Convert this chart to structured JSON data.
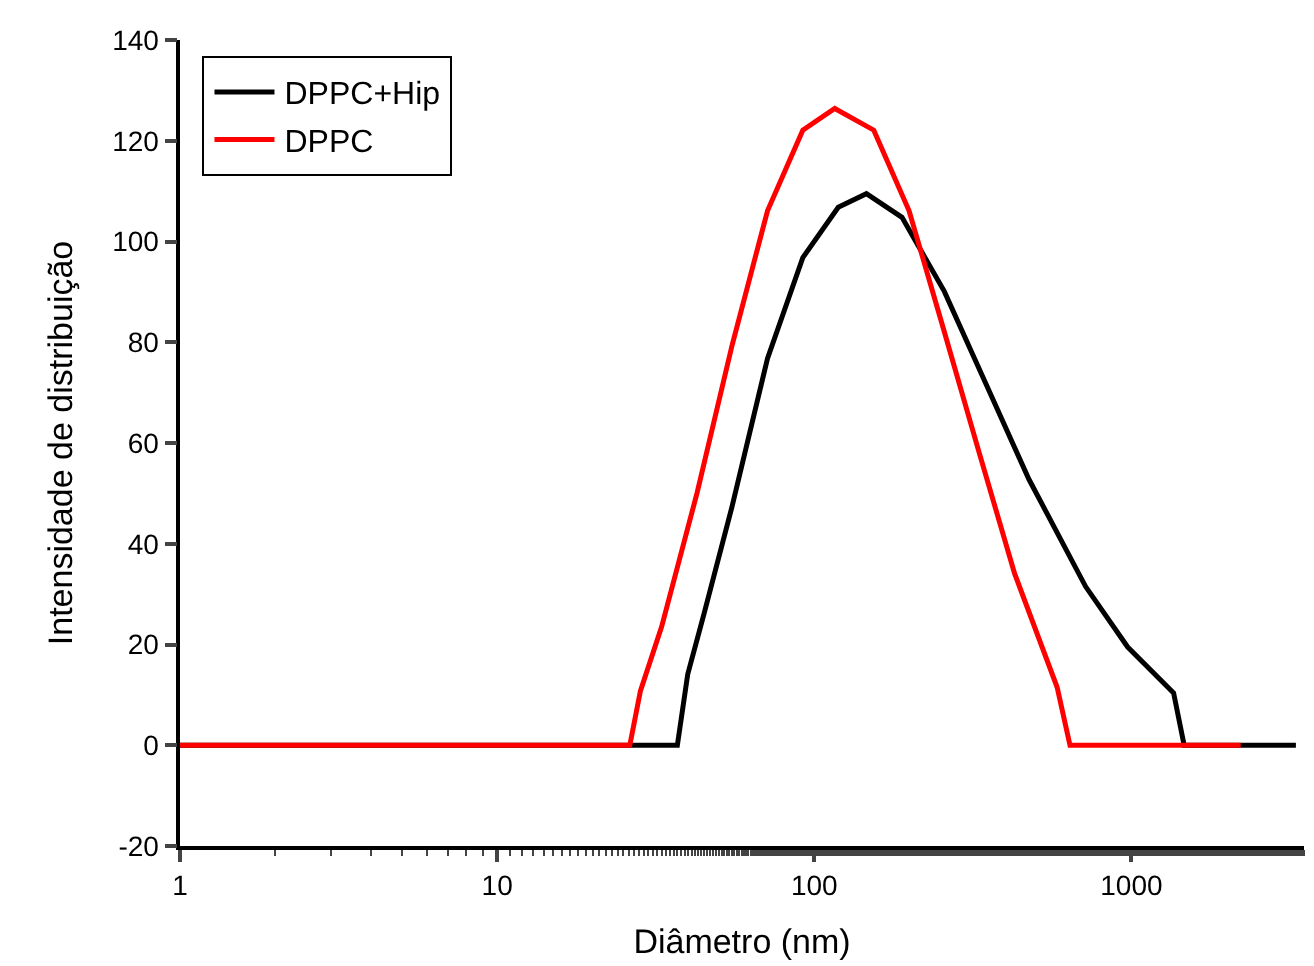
{
  "chart_data": {
    "type": "line",
    "xlabel": "Diâmetro (nm)",
    "ylabel": "Intensidade de distribuição",
    "log": "x",
    "xlim": [
      1,
      3500
    ],
    "xticks": [
      1,
      10,
      100,
      1000
    ],
    "ylim": [
      -20,
      140
    ],
    "yticks": [
      -20,
      0,
      20,
      40,
      60,
      80,
      100,
      120,
      140
    ],
    "grid": false,
    "legend": "top left",
    "marker": "none",
    "line_style": "solid",
    "series": [
      {
        "name": "DPPC+Hip",
        "color": "#000000",
        "x": [
          1,
          37,
          39.9,
          44.9,
          55.1,
          71.2,
          92,
          119,
          146,
          189,
          257,
          349,
          475,
          717,
          973,
          1358,
          1466,
          3300
        ],
        "values": [
          0,
          0,
          14.1,
          26.1,
          47.5,
          76.8,
          96.8,
          106.8,
          109.5,
          104.8,
          90.1,
          71.5,
          52.8,
          31.5,
          19.5,
          10.4,
          0,
          0
        ]
      },
      {
        "name": "DPPC",
        "color": "#ff0000",
        "x": [
          1,
          26.2,
          28.3,
          33,
          42.7,
          55.1,
          71.2,
          92,
          116,
          154,
          199,
          257,
          331,
          428,
          583,
          640,
          2210
        ],
        "values": [
          0,
          0,
          10.8,
          23.5,
          50.1,
          79.5,
          106.1,
          122.1,
          126.4,
          122.1,
          106.1,
          82.1,
          58.1,
          34.1,
          11.5,
          0,
          0
        ]
      }
    ]
  }
}
